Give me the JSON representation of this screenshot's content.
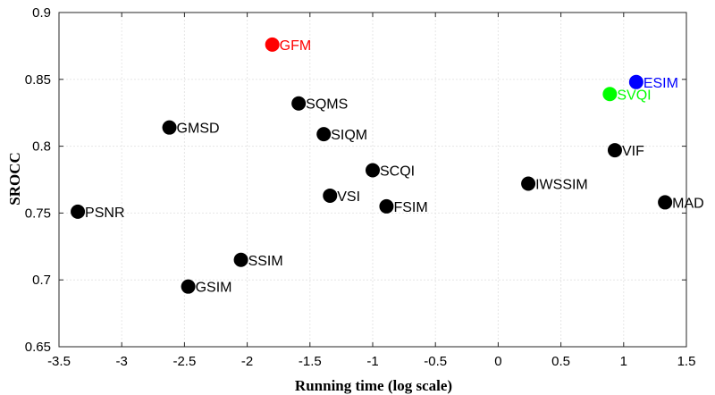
{
  "chart_data": {
    "type": "scatter",
    "title": "",
    "xlabel": "Running time (log scale)",
    "ylabel": "SROCC",
    "xlim": [
      -3.5,
      1.5
    ],
    "ylim": [
      0.65,
      0.9
    ],
    "grid": true,
    "x_ticks": [
      "-3.5",
      "-3",
      "-2.5",
      "-2",
      "-1.5",
      "-1",
      "-0.5",
      "0",
      "0.5",
      "1",
      "1.5"
    ],
    "y_ticks": [
      "0.65",
      "0.7",
      "0.75",
      "0.8",
      "0.85",
      "0.9"
    ],
    "points": [
      {
        "label": "GFM",
        "x": -1.8,
        "y": 0.876,
        "color": "#ff0000"
      },
      {
        "label": "ESIM",
        "x": 1.1,
        "y": 0.848,
        "color": "#0000ff"
      },
      {
        "label": "SVQI",
        "x": 0.89,
        "y": 0.839,
        "color": "#00ff00"
      },
      {
        "label": "SQMS",
        "x": -1.59,
        "y": 0.832,
        "color": "#000000"
      },
      {
        "label": "GMSD",
        "x": -2.62,
        "y": 0.814,
        "color": "#000000"
      },
      {
        "label": "SIQM",
        "x": -1.39,
        "y": 0.809,
        "color": "#000000"
      },
      {
        "label": "VIF",
        "x": 0.93,
        "y": 0.797,
        "color": "#000000"
      },
      {
        "label": "SCQI",
        "x": -1.0,
        "y": 0.782,
        "color": "#000000"
      },
      {
        "label": "IWSSIM",
        "x": 0.24,
        "y": 0.772,
        "color": "#000000"
      },
      {
        "label": "VSI",
        "x": -1.34,
        "y": 0.763,
        "color": "#000000"
      },
      {
        "label": "MAD",
        "x": 1.33,
        "y": 0.758,
        "color": "#000000"
      },
      {
        "label": "FSIM",
        "x": -0.89,
        "y": 0.755,
        "color": "#000000"
      },
      {
        "label": "PSNR",
        "x": -3.35,
        "y": 0.751,
        "color": "#000000"
      },
      {
        "label": "SSIM",
        "x": -2.05,
        "y": 0.715,
        "color": "#000000"
      },
      {
        "label": "GSIM",
        "x": -2.47,
        "y": 0.695,
        "color": "#000000"
      }
    ]
  }
}
